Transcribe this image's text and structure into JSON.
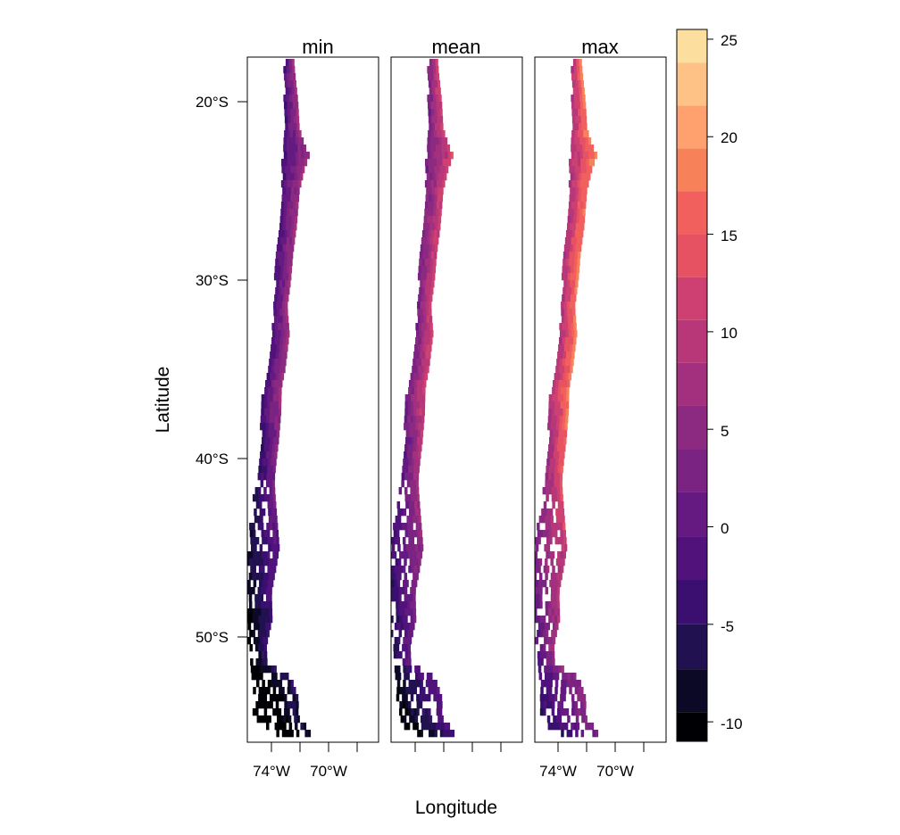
{
  "figure": {
    "x_axis_label": "Longitude",
    "y_axis_label": "Latitude"
  },
  "panels": [
    {
      "key": "min",
      "title": "min",
      "shift": -6.5
    },
    {
      "key": "mean",
      "title": "mean",
      "shift": -1.5
    },
    {
      "key": "max",
      "title": "max",
      "shift": 4.5
    }
  ],
  "x_tick_labels": [
    "74°W",
    "70°W"
  ],
  "y_tick_labels": [
    "20°S",
    "30°S",
    "40°S",
    "50°S"
  ],
  "colorbar": {
    "min": -11,
    "max": 25.5,
    "breaks": [
      -11,
      -9.5,
      -7.3,
      -5,
      -2.7,
      -0.5,
      1.8,
      4,
      6.2,
      8.4,
      10.6,
      12.8,
      15,
      17.2,
      19.4,
      21.6,
      23.8,
      25.5
    ],
    "colors": [
      "#000004",
      "#0c0926",
      "#221150",
      "#3b0f70",
      "#51127c",
      "#641a80",
      "#7b2382",
      "#8c2981",
      "#a3307e",
      "#b73779",
      "#cd4071",
      "#e75263",
      "#f1605d",
      "#f7825a",
      "#fea16e",
      "#fec287",
      "#fcdf9e",
      "#fcfdbf"
    ],
    "tick_labels": [
      "25",
      "20",
      "15",
      "10",
      "5",
      "0",
      "-5",
      "-10"
    ],
    "tick_values": [
      25,
      20,
      15,
      10,
      5,
      0,
      -5,
      -10
    ]
  },
  "colors": {
    "frame": "#000000",
    "background": "#ffffff"
  }
}
